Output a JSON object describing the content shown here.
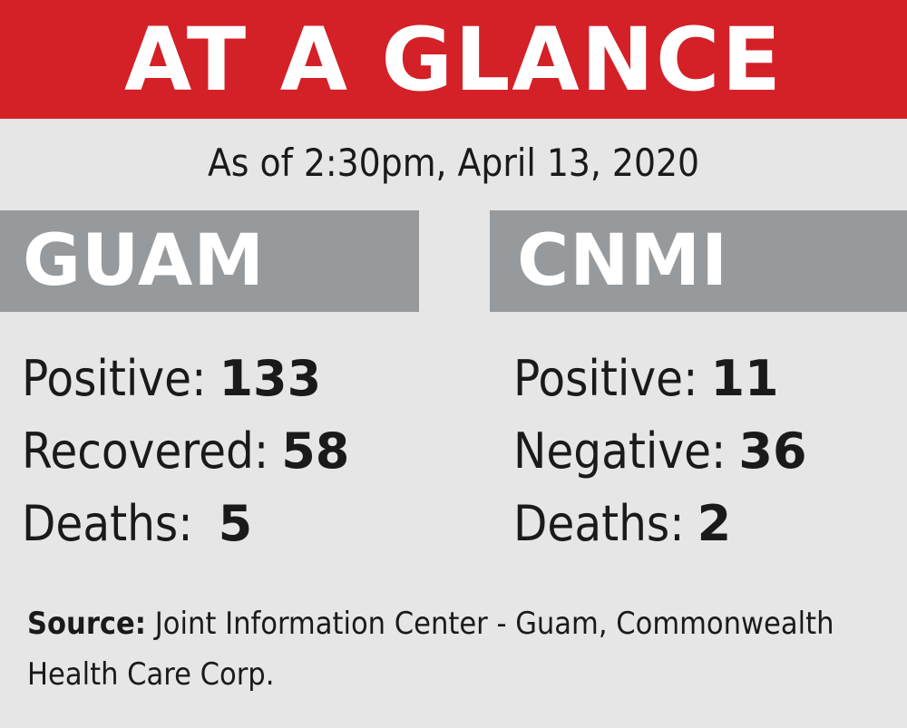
{
  "banner": {
    "title": "AT A GLANCE",
    "background_color": "#d42027"
  },
  "date_line": "As of 2:30pm, April 13, 2020",
  "regions": [
    {
      "name": "GUAM",
      "stats": [
        {
          "label": "Positive:",
          "value": "133"
        },
        {
          "label": "Recovered:",
          "value": "58"
        },
        {
          "label": "Deaths:",
          "value": "5"
        }
      ]
    },
    {
      "name": "CNMI",
      "stats": [
        {
          "label": "Positive:",
          "value": "11"
        },
        {
          "label": "Negative:",
          "value": "36"
        },
        {
          "label": "Deaths:",
          "value": "2"
        }
      ]
    }
  ],
  "header_color": "#979a9c",
  "source": {
    "label": "Source:",
    "text": "Joint Information Center - Guam, Commonwealth Health Care Corp."
  }
}
